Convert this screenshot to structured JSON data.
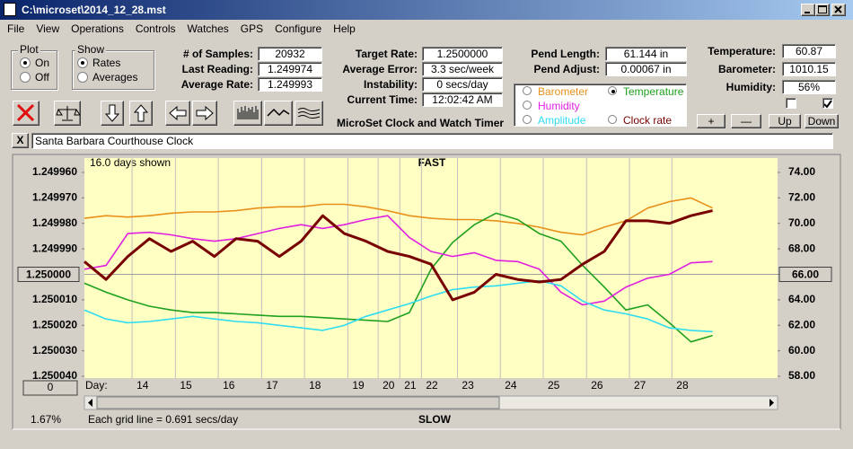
{
  "window": {
    "title": "C:\\microset\\2014_12_28.mst"
  },
  "menu": [
    "File",
    "View",
    "Operations",
    "Controls",
    "Watches",
    "GPS",
    "Configure",
    "Help"
  ],
  "plot": {
    "title": "Plot",
    "options": [
      "On",
      "Off"
    ]
  },
  "show": {
    "title": "Show",
    "options": [
      "Rates",
      "Averages"
    ]
  },
  "readings": [
    {
      "label": "# of Samples:",
      "value": "20932"
    },
    {
      "label": "Last Reading:",
      "value": "1.249974"
    },
    {
      "label": "Average Rate:",
      "value": "1.249993"
    }
  ],
  "timing": [
    {
      "label": "Target Rate:",
      "value": "1.2500000"
    },
    {
      "label": "Average Error:",
      "value": "3.3 sec/week"
    },
    {
      "label": "Instability:",
      "value": "0 secs/day"
    },
    {
      "label": "Current Time:",
      "value": "12:02:42 AM"
    }
  ],
  "app_name": "MicroSet Clock and Watch Timer",
  "pendulum": [
    {
      "label": "Pend Length:",
      "value": "61.144 in"
    },
    {
      "label": "Pend Adjust:",
      "value": "0.00067 in"
    }
  ],
  "environment": [
    {
      "label": "Temperature:",
      "value": "60.87"
    },
    {
      "label": "Barometer:",
      "value": "1010.15"
    },
    {
      "label": "Humidity:",
      "value": "56%"
    }
  ],
  "buttons": [
    "+",
    "—",
    "Up",
    "Down"
  ],
  "close_label": "X",
  "clock_name": "Santa Barbara Courthouse Clock",
  "chart_data": {
    "type": "line",
    "days_shown": "16.0 days shown",
    "top_label": "FAST",
    "bottom_label": "SLOW",
    "x_axis_label": "Day:",
    "footnote": "Each grid line = 0.691 secs/day",
    "scroll_label": "1.67%",
    "offset_button": "0",
    "x": [
      0,
      0.5,
      1,
      1.5,
      2,
      2.5,
      3,
      3.5,
      4,
      4.5,
      5,
      5.5,
      6,
      6.5,
      7,
      7.5,
      8,
      8.5,
      9,
      9.5,
      10,
      10.5,
      11,
      11.5,
      12,
      12.5,
      13,
      13.5,
      14,
      14.5
    ],
    "xlim": [
      0,
      16
    ],
    "xticks": [
      {
        "value": 1.1,
        "label": "14"
      },
      {
        "value": 2.1,
        "label": "15"
      },
      {
        "value": 3.09,
        "label": "16"
      },
      {
        "value": 4.09,
        "label": "17"
      },
      {
        "value": 5.08,
        "label": "18"
      },
      {
        "value": 6.08,
        "label": "19"
      },
      {
        "value": 6.78,
        "label": "20"
      },
      {
        "value": 7.28,
        "label": "21"
      },
      {
        "value": 7.78,
        "label": "22"
      },
      {
        "value": 8.61,
        "label": "23"
      },
      {
        "value": 9.6,
        "label": "24"
      },
      {
        "value": 10.59,
        "label": "25"
      },
      {
        "value": 11.59,
        "label": "26"
      },
      {
        "value": 12.58,
        "label": "27"
      },
      {
        "value": 13.56,
        "label": "28"
      }
    ],
    "ylim": [
      1.24996,
      1.25004
    ],
    "y_inverted": true,
    "yticks": [
      {
        "value": 1.24996,
        "label": "1.249960"
      },
      {
        "value": 1.24997,
        "label": "1.249970"
      },
      {
        "value": 1.24998,
        "label": "1.249980"
      },
      {
        "value": 1.24999,
        "label": "1.249990"
      },
      {
        "value": 1.25,
        "label": "1.250000"
      },
      {
        "value": 1.25001,
        "label": "1.250010"
      },
      {
        "value": 1.25002,
        "label": "1.250020"
      },
      {
        "value": 1.25003,
        "label": "1.250030"
      },
      {
        "value": 1.25004,
        "label": "1.250040"
      }
    ],
    "y2lim": [
      58,
      74
    ],
    "y2ticks": [
      {
        "value": 74,
        "label": "74.00"
      },
      {
        "value": 72,
        "label": "72.00"
      },
      {
        "value": 70,
        "label": "70.00"
      },
      {
        "value": 68,
        "label": "68.00"
      },
      {
        "value": 66,
        "label": "66.00"
      },
      {
        "value": 64,
        "label": "64.00"
      },
      {
        "value": 62,
        "label": "62.00"
      },
      {
        "value": 60,
        "label": "60.00"
      },
      {
        "value": 58,
        "label": "58.00"
      }
    ],
    "grid": "x",
    "series": [
      {
        "name": "Barometer",
        "color": "#e8901a",
        "axis": "y2",
        "values": [
          70.4,
          70.6,
          70.5,
          70.6,
          70.8,
          70.9,
          70.9,
          71.0,
          71.2,
          71.3,
          71.3,
          71.5,
          71.5,
          71.3,
          71.0,
          70.6,
          70.4,
          70.3,
          70.3,
          70.2,
          70.0,
          69.7,
          69.3,
          69.1,
          69.7,
          70.2,
          71.2,
          71.7,
          72.0,
          71.2
        ]
      },
      {
        "name": "Temperature",
        "color": "#1fa01f",
        "axis": "y2",
        "values": [
          65.3,
          64.6,
          64.0,
          63.5,
          63.2,
          63.0,
          63.0,
          62.9,
          62.8,
          62.7,
          62.7,
          62.6,
          62.5,
          62.4,
          62.3,
          63.0,
          66.4,
          68.5,
          69.9,
          70.8,
          70.3,
          69.2,
          68.6,
          66.7,
          65.0,
          63.2,
          63.6,
          62.2,
          60.7,
          61.2
        ]
      },
      {
        "name": "Humidity",
        "color": "#e020e0",
        "axis": "y2",
        "values": [
          66.4,
          66.7,
          69.2,
          69.3,
          69.1,
          68.8,
          68.6,
          68.8,
          69.2,
          69.6,
          69.9,
          69.6,
          69.9,
          70.3,
          70.6,
          68.9,
          67.8,
          67.4,
          67.7,
          67.1,
          67.0,
          66.4,
          64.6,
          63.6,
          63.9,
          65.0,
          65.7,
          66.0,
          66.9,
          67.0
        ]
      },
      {
        "name": "Amplitude",
        "color": "#30dcf0",
        "axis": "y2",
        "values": [
          63.2,
          62.5,
          62.2,
          62.3,
          62.5,
          62.7,
          62.5,
          62.3,
          62.2,
          62.0,
          61.8,
          61.6,
          62.0,
          62.7,
          63.2,
          63.7,
          64.3,
          64.8,
          65.0,
          65.1,
          65.3,
          65.5,
          65.1,
          63.9,
          63.2,
          62.9,
          62.5,
          61.8,
          61.6,
          61.5
        ]
      },
      {
        "name": "Clock rate",
        "color": "#780000",
        "axis": "y",
        "values": [
          1.249995,
          1.250002,
          1.249993,
          1.249986,
          1.249991,
          1.249987,
          1.249993,
          1.249986,
          1.249987,
          1.249993,
          1.249987,
          1.249977,
          1.249984,
          1.249987,
          1.249991,
          1.249993,
          1.249996,
          1.25001,
          1.250007,
          1.25,
          1.250002,
          1.250003,
          1.250002,
          1.249996,
          1.249991,
          1.249979,
          1.249979,
          1.24998,
          1.249977,
          1.249975
        ]
      }
    ]
  }
}
